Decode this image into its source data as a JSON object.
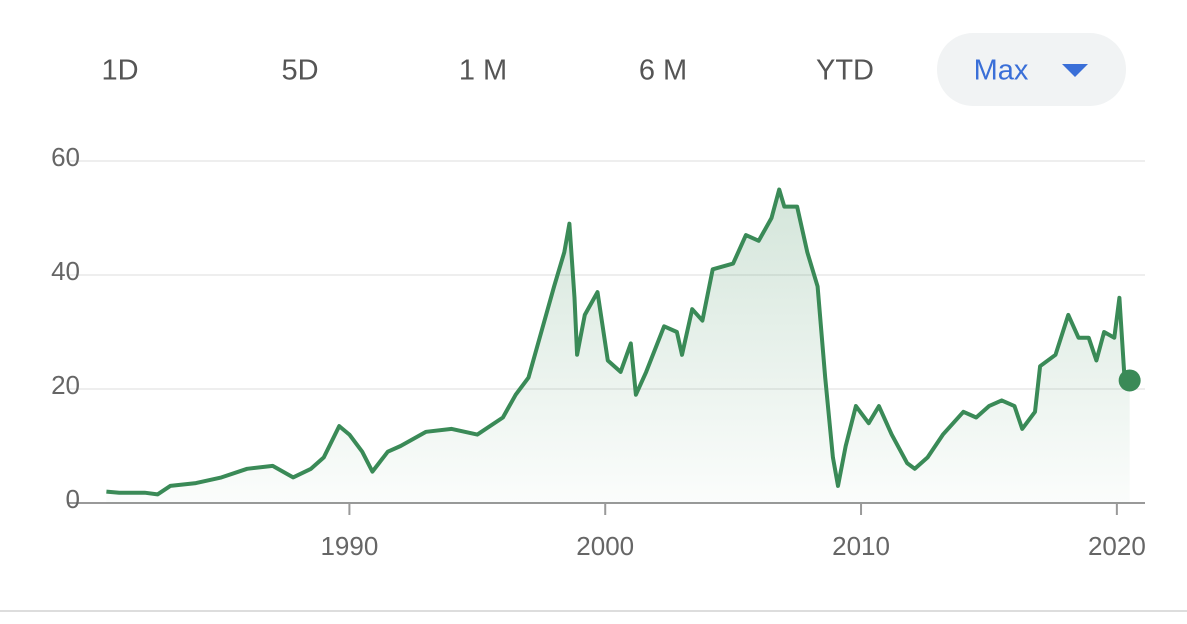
{
  "tabs": [
    "1D",
    "5D",
    "1 M",
    "6 M",
    "YTD",
    "Max"
  ],
  "selected_tab": 5,
  "chart_data": {
    "type": "line",
    "color": "#3a8a57",
    "grid": true,
    "xlim": [
      1979,
      2021.1
    ],
    "xticks": [
      1990,
      2000,
      2010,
      2020
    ],
    "ylim": [
      0,
      60
    ],
    "yticks": [
      0,
      20,
      40,
      60
    ],
    "x": [
      1980.5,
      1981,
      1982,
      1982.5,
      1983,
      1984,
      1985,
      1986,
      1987,
      1987.8,
      1988.5,
      1989,
      1989.6,
      1990,
      1990.5,
      1990.9,
      1991.5,
      1992,
      1993,
      1994,
      1995,
      1996,
      1996.5,
      1997,
      1997.5,
      1998,
      1998.4,
      1998.6,
      1998.8,
      1998.9,
      1999.2,
      1999.7,
      2000.1,
      2000.6,
      2001,
      2001.2,
      2001.6,
      2002.3,
      2002.8,
      2003,
      2003.4,
      2003.8,
      2004.2,
      2005,
      2005.5,
      2006,
      2006.5,
      2006.8,
      2007,
      2007.5,
      2007.9,
      2008.3,
      2008.6,
      2008.9,
      2009.1,
      2009.4,
      2009.8,
      2010.3,
      2010.7,
      2011.2,
      2011.8,
      2012.1,
      2012.6,
      2013.2,
      2014,
      2014.5,
      2015,
      2015.5,
      2016,
      2016.3,
      2016.8,
      2017,
      2017.6,
      2018.1,
      2018.5,
      2018.9,
      2019.2,
      2019.5,
      2019.9,
      2020.1,
      2020.3,
      2020.5
    ],
    "values": [
      2,
      1.8,
      1.8,
      1.5,
      3,
      3.5,
      4.5,
      6,
      6.5,
      4.5,
      6,
      8,
      13.5,
      12,
      9,
      5.5,
      9,
      10,
      12.5,
      13,
      12,
      15,
      19,
      22,
      30,
      38,
      44,
      49,
      36,
      26,
      33,
      37,
      25,
      23,
      28,
      19,
      23,
      31,
      30,
      26,
      34,
      32,
      41,
      42,
      47,
      46,
      50,
      55,
      52,
      52,
      44,
      38,
      22,
      8,
      3,
      10,
      17,
      14,
      17,
      12,
      7,
      6,
      8,
      12,
      16,
      15,
      17,
      18,
      17,
      13,
      16,
      24,
      26,
      33,
      29,
      29,
      25,
      30,
      29,
      36,
      22,
      21.5
    ]
  }
}
